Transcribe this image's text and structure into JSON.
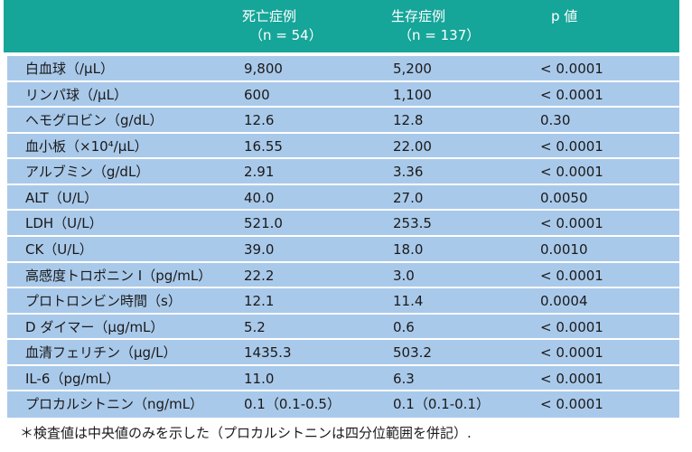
{
  "table": {
    "headers": [
      {
        "title": "死亡症例",
        "sub": "（n = 54）"
      },
      {
        "title": "生存症例",
        "sub": "（n = 137）"
      },
      {
        "title": "p 値"
      }
    ],
    "rows": [
      [
        "白血球（/μL）",
        "9,800",
        "5,200",
        "< 0.0001"
      ],
      [
        "リンパ球（/μL）",
        "600",
        "1,100",
        "< 0.0001"
      ],
      [
        "ヘモグロビン（g/dL）",
        "12.6",
        "12.8",
        "0.30"
      ],
      [
        "血小板（×10⁴/μL）",
        "16.55",
        "22.00",
        "< 0.0001"
      ],
      [
        "アルブミン（g/dL）",
        "2.91",
        "3.36",
        "< 0.0001"
      ],
      [
        "ALT（U/L）",
        "40.0",
        "27.0",
        "0.0050"
      ],
      [
        "LDH（U/L）",
        "521.0",
        "253.5",
        "< 0.0001"
      ],
      [
        "CK（U/L）",
        "39.0",
        "18.0",
        "0.0010"
      ],
      [
        "高感度トロポニン I（pg/mL）",
        "22.2",
        "3.0",
        "< 0.0001"
      ],
      [
        "プロトロンビン時間（s）",
        "12.1",
        "11.4",
        "0.0004"
      ],
      [
        "D ダイマー（μg/mL）",
        "5.2",
        "0.6",
        "< 0.0001"
      ],
      [
        "血清フェリチン（μg/L）",
        "1435.3",
        "503.2",
        "< 0.0001"
      ],
      [
        "IL-6（pg/mL）",
        "11.0",
        "6.3",
        "< 0.0001"
      ],
      [
        "プロカルシトニン（ng/mL）",
        "0.1（0.1-0.5）",
        "0.1（0.1-0.1）",
        "< 0.0001"
      ]
    ]
  },
  "footnote": "＊検査値は中央値のみを示した（プロカルシトニンは四分位範囲を併記）."
}
